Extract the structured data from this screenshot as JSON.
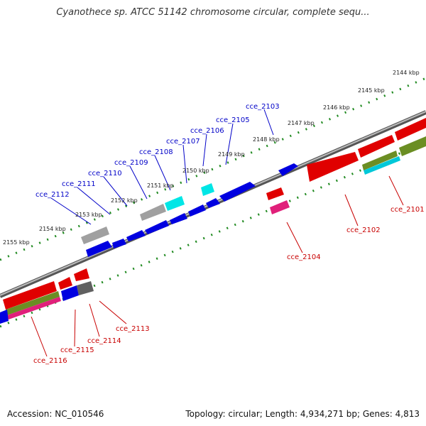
{
  "title": "Cyanothece sp. ATCC 51142 chromosome circular, complete sequ...",
  "footer": {
    "accession": "Accession: NC_010546",
    "summary": "Topology: circular; Length: 4,934,271 bp; Genes: 4,813"
  },
  "colors": {
    "backbone": "#707070",
    "ticks": "#228b22",
    "label_top": "#0000c8",
    "label_bottom": "#c80000"
  },
  "ticks": [
    "2144 kbp",
    "2145 kbp",
    "2146 kbp",
    "2147 kbp",
    "2148 kbp",
    "2149 kbp",
    "2150 kbp",
    "2151 kbp",
    "2152 kbp",
    "2153 kbp",
    "2154 kbp",
    "2155 kbp"
  ],
  "genes_top": [
    "cce_2103",
    "cce_2105",
    "cce_2106",
    "cce_2107",
    "cce_2108",
    "cce_2109",
    "cce_2110",
    "cce_2111",
    "cce_2112"
  ],
  "genes_bottom": [
    "cce_2101",
    "cce_2102",
    "cce_2104",
    "cce_2113",
    "cce_2114",
    "cce_2115",
    "cce_2116"
  ]
}
